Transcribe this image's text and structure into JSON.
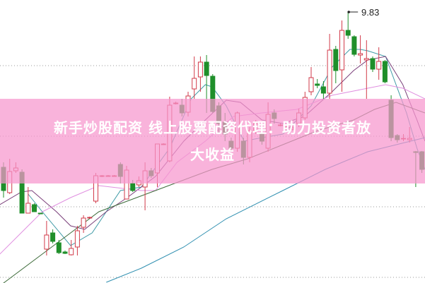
{
  "banner": {
    "line1": "新手炒股配资 线上股票配资代理：助力投资者放",
    "line2": "大收益"
  },
  "chart_data": {
    "type": "candlestick",
    "title": "",
    "max_label": "9.83",
    "colors": {
      "up": "#d23a4a",
      "down": "#1f8f2a",
      "grid": "#999999",
      "banner": "#f796cd"
    },
    "grid": true,
    "gridline_prices": [
      9.07,
      8.07,
      7.07,
      6.07
    ],
    "candle_fields": [
      "index",
      "open",
      "high",
      "low",
      "close"
    ],
    "candles": [
      [
        0,
        7.63,
        7.7,
        7.2,
        7.3
      ],
      [
        1,
        7.27,
        7.75,
        7.25,
        7.57
      ],
      [
        2,
        7.58,
        7.7,
        7.55,
        7.62
      ],
      [
        3,
        7.56,
        7.6,
        6.98,
        6.98
      ],
      [
        4,
        6.98,
        7.35,
        6.98,
        7.12
      ],
      [
        5,
        7.1,
        7.12,
        7.0,
        7.0
      ],
      [
        6,
        6.98,
        6.98,
        6.97,
        6.97
      ],
      [
        7,
        6.47,
        6.87,
        6.38,
        6.67
      ],
      [
        8,
        6.7,
        6.75,
        6.55,
        6.58
      ],
      [
        9,
        6.56,
        6.6,
        6.4,
        6.42
      ],
      [
        10,
        6.43,
        6.45,
        6.4,
        6.41
      ],
      [
        11,
        6.39,
        6.6,
        6.38,
        6.48
      ],
      [
        12,
        6.5,
        6.8,
        6.38,
        6.73
      ],
      [
        13,
        6.78,
        6.95,
        6.7,
        6.91
      ],
      [
        14,
        6.91,
        6.93,
        6.91,
        6.92
      ],
      [
        15,
        7.15,
        7.55,
        7.12,
        7.51
      ],
      [
        16,
        7.5,
        7.52,
        7.49,
        7.51
      ],
      [
        17,
        7.51,
        7.52,
        7.5,
        7.51
      ],
      [
        18,
        7.51,
        7.52,
        7.5,
        7.51
      ],
      [
        19,
        7.67,
        7.7,
        7.4,
        7.5
      ],
      [
        20,
        7.18,
        7.65,
        7.18,
        7.59
      ],
      [
        21,
        7.4,
        7.45,
        7.28,
        7.3
      ],
      [
        22,
        7.38,
        7.5,
        7.35,
        7.44
      ],
      [
        23,
        7.35,
        7.7,
        7.02,
        7.58
      ],
      [
        24,
        7.58,
        7.62,
        7.48,
        7.51
      ],
      [
        25,
        7.55,
        7.96,
        7.35,
        7.96
      ],
      [
        26,
        7.96,
        7.97,
        7.95,
        7.96
      ],
      [
        27,
        7.72,
        8.63,
        7.7,
        8.51
      ],
      [
        28,
        8.54,
        8.56,
        8.52,
        8.54
      ],
      [
        29,
        8.51,
        8.6,
        8.35,
        8.4
      ],
      [
        30,
        8.41,
        8.7,
        8.35,
        8.64
      ],
      [
        31,
        8.74,
        9.2,
        8.6,
        8.89
      ],
      [
        32,
        8.91,
        9.2,
        8.7,
        9.12
      ],
      [
        33,
        9.12,
        9.22,
        8.4,
        8.93
      ],
      [
        34,
        8.92,
        8.95,
        8.4,
        8.42
      ],
      [
        35,
        8.5,
        8.55,
        8.1,
        8.25
      ],
      [
        36,
        8.27,
        8.4,
        8.0,
        8.1
      ],
      [
        37,
        8.0,
        8.05,
        7.85,
        7.9
      ],
      [
        38,
        7.9,
        8.42,
        7.85,
        8.4
      ],
      [
        39,
        8.0,
        8.05,
        7.67,
        7.77
      ],
      [
        40,
        7.77,
        8.2,
        7.7,
        8.15
      ],
      [
        41,
        8.15,
        8.3,
        8.1,
        8.25
      ],
      [
        42,
        8.1,
        8.15,
        7.95,
        8.0
      ],
      [
        43,
        7.9,
        8.55,
        7.85,
        8.38
      ],
      [
        44,
        8.4,
        8.45,
        8.25,
        8.32
      ],
      [
        45,
        8.23,
        8.25,
        8.21,
        8.23
      ],
      [
        46,
        8.2,
        8.22,
        8.18,
        8.2
      ],
      [
        47,
        8.17,
        8.22,
        8.15,
        8.19
      ],
      [
        48,
        8.25,
        8.46,
        8.2,
        8.4
      ],
      [
        49,
        8.33,
        8.7,
        8.3,
        8.62
      ],
      [
        50,
        8.7,
        9.05,
        8.65,
        8.9
      ],
      [
        51,
        8.81,
        8.88,
        8.75,
        8.79
      ],
      [
        52,
        8.77,
        8.85,
        8.6,
        8.68
      ],
      [
        53,
        8.68,
        9.52,
        8.6,
        9.29
      ],
      [
        54,
        9.3,
        9.35,
        8.82,
        9.0
      ],
      [
        55,
        9.01,
        9.71,
        8.7,
        9.57
      ],
      [
        56,
        9.57,
        9.83,
        9.45,
        9.5
      ],
      [
        57,
        9.48,
        9.5,
        9.2,
        9.23
      ],
      [
        58,
        9.22,
        9.5,
        9.1,
        9.24
      ],
      [
        59,
        9.15,
        9.43,
        8.6,
        9.17
      ],
      [
        60,
        9.17,
        9.2,
        8.98,
        9.02
      ],
      [
        61,
        9.02,
        9.33,
        8.87,
        9.13
      ],
      [
        62,
        9.13,
        9.15,
        8.82,
        8.84
      ],
      [
        63,
        8.58,
        8.65,
        8.0,
        8.05
      ],
      [
        64,
        8.08,
        8.1,
        7.98,
        8.02
      ],
      [
        65,
        8.04,
        8.1,
        8.0,
        8.04
      ],
      [
        66,
        8.02,
        8.2,
        7.98,
        8.04
      ],
      [
        67,
        7.85,
        7.86,
        7.35,
        7.84
      ],
      [
        68,
        7.85,
        7.86,
        7.55,
        7.6
      ]
    ],
    "moving_averages": [
      {
        "color": "#3e9aa6",
        "points": [
          [
            4,
            7.25
          ],
          [
            6.3,
            7.0
          ],
          [
            10.9,
            6.52
          ],
          [
            14.4,
            6.7
          ],
          [
            19,
            7.3
          ],
          [
            22.4,
            7.35
          ],
          [
            27,
            7.9
          ],
          [
            30.5,
            8.6
          ],
          [
            32.8,
            8.8
          ],
          [
            33.9,
            8.77
          ],
          [
            36.2,
            8.5
          ],
          [
            39.1,
            8.0
          ],
          [
            42,
            8.05
          ],
          [
            45.4,
            8.1
          ],
          [
            50,
            8.5
          ],
          [
            53.4,
            9.05
          ],
          [
            56.3,
            9.3
          ],
          [
            58,
            9.3
          ],
          [
            59.2,
            9.28
          ],
          [
            62.1,
            9.2
          ],
          [
            63.8,
            8.8
          ],
          [
            65.5,
            8.4
          ],
          [
            67.2,
            7.9
          ],
          [
            68.5,
            7.6
          ]
        ]
      },
      {
        "color": "#7a3f7a",
        "points": [
          [
            -0.6,
            7.1
          ],
          [
            2.9,
            7.28
          ],
          [
            4.6,
            7.3
          ],
          [
            8.6,
            7.0
          ],
          [
            10.9,
            6.8
          ],
          [
            13.2,
            6.75
          ],
          [
            16.7,
            7.0
          ],
          [
            20.1,
            7.2
          ],
          [
            24.7,
            7.5
          ],
          [
            29.3,
            8.0
          ],
          [
            32.8,
            8.3
          ],
          [
            36.2,
            8.58
          ],
          [
            38.5,
            8.55
          ],
          [
            42,
            8.3
          ],
          [
            45.4,
            8.25
          ],
          [
            48.9,
            8.35
          ],
          [
            53.4,
            8.7
          ],
          [
            56.9,
            9.0
          ],
          [
            59.2,
            9.15
          ],
          [
            62.1,
            9.2
          ],
          [
            64.9,
            8.8
          ],
          [
            67.2,
            8.3
          ],
          [
            68.5,
            8.0
          ]
        ]
      },
      {
        "color": "#e08fe0",
        "points": [
          [
            -0.6,
            6.4
          ],
          [
            4,
            6.8
          ],
          [
            6.3,
            7.0
          ],
          [
            10.9,
            7.2
          ],
          [
            15.5,
            7.37
          ],
          [
            22.4,
            7.3
          ],
          [
            24.7,
            7.3
          ],
          [
            28.2,
            7.7
          ],
          [
            32.8,
            8.0
          ],
          [
            37.4,
            8.35
          ],
          [
            42,
            8.4
          ],
          [
            47.7,
            8.45
          ],
          [
            53.4,
            8.65
          ],
          [
            59.2,
            8.75
          ],
          [
            62.1,
            8.8
          ],
          [
            64.9,
            8.75
          ],
          [
            68.5,
            8.6
          ]
        ]
      },
      {
        "color": "#3d6b3a",
        "points": [
          [
            -0.6,
            5.95
          ],
          [
            1.7,
            6.1
          ],
          [
            6.3,
            6.4
          ],
          [
            10.9,
            6.7
          ],
          [
            15.5,
            7.0
          ],
          [
            20.1,
            7.15
          ],
          [
            24.7,
            7.3
          ],
          [
            29.3,
            7.45
          ],
          [
            33.9,
            7.6
          ],
          [
            39.7,
            7.75
          ],
          [
            45.4,
            7.95
          ],
          [
            51.1,
            8.15
          ],
          [
            56.9,
            8.3
          ],
          [
            60.3,
            8.45
          ],
          [
            63.8,
            8.55
          ],
          [
            68.5,
            8.4
          ]
        ]
      },
      {
        "color": "#2f8fb0",
        "points": [
          [
            16.7,
            6.0
          ],
          [
            22.4,
            6.2
          ],
          [
            29.3,
            6.5
          ],
          [
            36.2,
            6.9
          ],
          [
            45.4,
            7.3
          ],
          [
            52.3,
            7.6
          ],
          [
            59.2,
            7.85
          ],
          [
            68.5,
            8.05
          ]
        ]
      }
    ]
  }
}
